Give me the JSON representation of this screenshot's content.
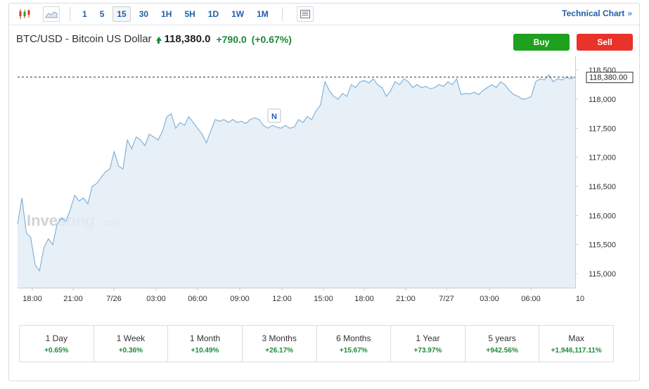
{
  "toolbar": {
    "candles_icon": "candlestick-icon",
    "area_icon": "area-chart-icon",
    "news_icon": "news-icon",
    "timeframes": [
      "1",
      "5",
      "15",
      "30",
      "1H",
      "5H",
      "1D",
      "1W",
      "1M"
    ],
    "active_timeframe": "15",
    "technical_chart_label": "Technical Chart",
    "technical_chart_chevron": "»"
  },
  "header": {
    "pair_name": "BTC/USD - Bitcoin US Dollar",
    "price": "118,380.0",
    "change": "+790.0",
    "change_pct": "(+0.67%)",
    "buy_label": "Buy",
    "sell_label": "Sell"
  },
  "colors": {
    "up": "#1d8a3a",
    "buy": "#1ea11e",
    "sell": "#e8322a",
    "link": "#1f5fa8",
    "line": "#7aaed6",
    "fill": "#e3ecf6"
  },
  "watermark": {
    "brand": "Investing",
    "suffix": ".com"
  },
  "chart_data": {
    "type": "area",
    "title": "",
    "xlabel": "",
    "ylabel": "",
    "x_ticks": [
      "18:00",
      "21:00",
      "7/26",
      "03:00",
      "06:00",
      "09:00",
      "12:00",
      "15:00",
      "18:00",
      "21:00",
      "7/27",
      "03:00",
      "06:00",
      "10"
    ],
    "y_ticks": [
      "115,000",
      "115,500",
      "116,000",
      "116,500",
      "117,000",
      "117,500",
      "118,000",
      "118,500"
    ],
    "ylim": [
      114750,
      118650
    ],
    "grid": false,
    "last_price": 118380,
    "last_price_label": "118,380.00",
    "news_marker": {
      "label": "N",
      "x_index": 122
    },
    "series": [
      {
        "values": [
          115850,
          116300,
          115700,
          115620,
          115150,
          115050,
          115450,
          115600,
          115500,
          115850,
          115950,
          115900,
          116100,
          116350,
          116250,
          116300,
          116200,
          116500,
          116550,
          116650,
          116750,
          116800,
          117100,
          116850,
          116800,
          117300,
          117150,
          117350,
          117300,
          117200,
          117400,
          117350,
          117300,
          117450,
          117700,
          117750,
          117500,
          117600,
          117550,
          117700,
          117600,
          117500,
          117400,
          117250,
          117450,
          117650,
          117620,
          117650,
          117600,
          117650,
          117600,
          117620,
          117580,
          117650,
          117680,
          117650,
          117550,
          117500,
          117550,
          117520,
          117500,
          117550,
          117500,
          117520,
          117650,
          117600,
          117700,
          117650,
          117800,
          117900,
          118300,
          118150,
          118050,
          118000,
          118100,
          118050,
          118250,
          118200,
          118300,
          118320,
          118280,
          118350,
          118250,
          118200,
          118050,
          118150,
          118300,
          118250,
          118350,
          118300,
          118200,
          118250,
          118200,
          118220,
          118180,
          118200,
          118250,
          118220,
          118300,
          118250,
          118350,
          118080,
          118100,
          118090,
          118120,
          118080,
          118150,
          118200,
          118250,
          118200,
          118300,
          118250,
          118150,
          118080,
          118050,
          118000,
          118010,
          118050,
          118300,
          118350,
          118330,
          118420,
          118300,
          118350,
          118330,
          118380,
          118350,
          118380
        ]
      }
    ]
  },
  "performance": [
    {
      "label": "1 Day",
      "value": "+0.65%"
    },
    {
      "label": "1 Week",
      "value": "+0.36%"
    },
    {
      "label": "1 Month",
      "value": "+10.49%"
    },
    {
      "label": "3 Months",
      "value": "+26.17%"
    },
    {
      "label": "6 Months",
      "value": "+15.67%"
    },
    {
      "label": "1 Year",
      "value": "+73.97%"
    },
    {
      "label": "5 years",
      "value": "+942.56%"
    },
    {
      "label": "Max",
      "value": "+1,946,117.11%"
    }
  ]
}
